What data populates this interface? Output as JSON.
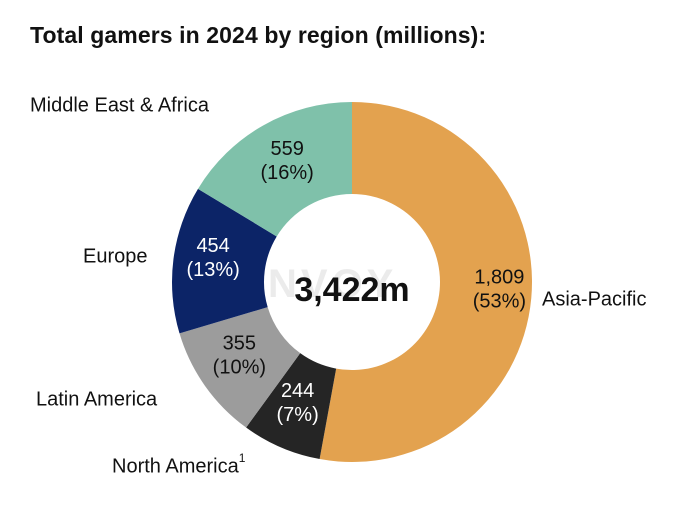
{
  "title": "Total gamers in 2024 by region (millions):",
  "watermark": "KONVOY",
  "center_label": "3,422m",
  "chart_data": {
    "type": "pie",
    "variant": "donut",
    "title": "Total gamers in 2024 by region (millions):",
    "total": 3422,
    "total_label": "3,422m",
    "slices": [
      {
        "name": "Asia-Pacific",
        "value": 1809,
        "value_label": "1,809",
        "percent_label": "(53%)",
        "color": "#E3A24F",
        "label_color": "#111111"
      },
      {
        "name": "North America",
        "superscript": "1",
        "value": 244,
        "value_label": "244",
        "percent_label": "(7%)",
        "color": "#252525",
        "label_color": "#ffffff"
      },
      {
        "name": "Latin America",
        "value": 355,
        "value_label": "355",
        "percent_label": "(10%)",
        "color": "#9C9C9C",
        "label_color": "#111111"
      },
      {
        "name": "Europe",
        "value": 454,
        "value_label": "454",
        "percent_label": "(13%)",
        "color": "#0C2467",
        "label_color": "#ffffff"
      },
      {
        "name": "Middle East & Africa",
        "value": 559,
        "value_label": "559",
        "percent_label": "(16%)",
        "color": "#7FC1AA",
        "label_color": "#111111"
      }
    ]
  }
}
